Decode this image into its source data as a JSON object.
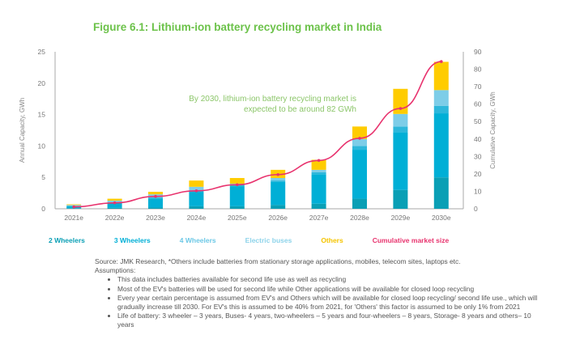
{
  "title": "Figure 6.1: Lithium-ion battery recycling market in India",
  "chart_data": {
    "type": "bar",
    "stacked": true,
    "title": "Figure 6.1: Lithium-ion battery recycling market in India",
    "categories": [
      "2021e",
      "2022e",
      "2023e",
      "2024e",
      "2025e",
      "2026e",
      "2027e",
      "2028e",
      "2029e",
      "2030e"
    ],
    "ylabel": "Annual Capacity, GWh",
    "ylim": [
      0,
      25
    ],
    "yticks": [
      0,
      5,
      10,
      15,
      20,
      25
    ],
    "y2label": "Cumulative Capacity, GWh",
    "y2lim": [
      0,
      90
    ],
    "y2ticks": [
      0,
      10,
      20,
      30,
      40,
      50,
      60,
      70,
      80,
      90
    ],
    "series": [
      {
        "name": "2 Wheelers",
        "color": "#0a9fb5",
        "values": [
          0.1,
          0.15,
          0.2,
          0.4,
          0.4,
          0.6,
          0.8,
          1.6,
          3.0,
          5.0
        ]
      },
      {
        "name": "3 Wheelers",
        "color": "#00afd6",
        "values": [
          0.3,
          0.75,
          1.4,
          2.3,
          3.2,
          3.7,
          4.7,
          7.8,
          9.2,
          10.2
        ]
      },
      {
        "name": "4 Wheelers",
        "color": "#2db7db",
        "values": [
          0.05,
          0.1,
          0.2,
          0.2,
          0.2,
          0.2,
          0.3,
          0.6,
          0.9,
          1.2
        ]
      },
      {
        "name": "Electric buses",
        "color": "#7dcde8",
        "values": [
          0.15,
          0.3,
          0.5,
          0.6,
          0.2,
          0.4,
          0.4,
          1.1,
          2.0,
          2.5
        ]
      },
      {
        "name": "Others",
        "color": "#ffcc00",
        "values": [
          0.1,
          0.3,
          0.4,
          1.0,
          0.9,
          1.3,
          1.6,
          2.0,
          4.0,
          4.5
        ]
      },
      {
        "name": "Cumulative market size",
        "type": "line",
        "axis": "right",
        "color": "#e8336e",
        "values": [
          1.1,
          3.4,
          7.1,
          10.3,
          13.8,
          19.6,
          27.7,
          40.4,
          57.5,
          84.4
        ]
      }
    ],
    "annotation": "By 2030, lithium-ion battery recycling market is expected to be around 82 GWh",
    "legend": "bottom",
    "grid": false
  },
  "annotation_lines": [
    "By 2030, lithium-ion battery recycling market is",
    "expected to be around 82 GWh"
  ],
  "notes": {
    "source": "Source: JMK Research, *Others include batteries from stationary storage applications, mobiles, telecom sites, laptops etc.",
    "assumptions_label": "Assumptions:",
    "bullets": [
      "This data includes batteries available for second life use as well as recycling",
      "Most of the EV's batteries will be used for second life while Other applications will be available for closed loop recycling",
      "Every year certain percentage is assumed from EV's and Others which will be available for closed loop recycling/ second life use., which will gradually increase till 2030. For EV's this is assumed to be 40% from 2021, for 'Others' this factor is assumed to be only 1% from 2021",
      "Life of battery: 3 wheeler – 3 years, Buses- 4 years, two-wheelers – 5 years and four-wheelers – 8 years, Storage- 8 years and others– 10 years"
    ]
  }
}
